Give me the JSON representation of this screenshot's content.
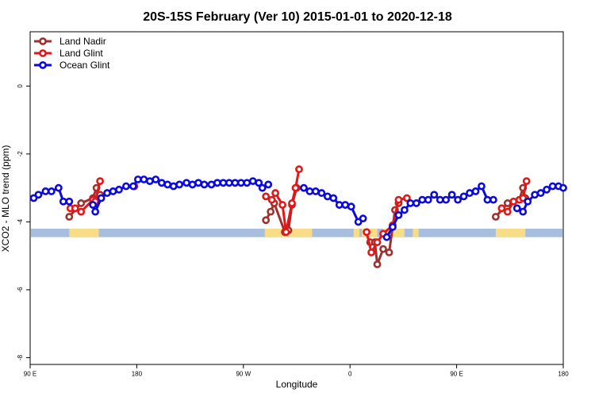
{
  "chart_data": {
    "type": "line",
    "title": "20S-15S February (Ver 10)   2015-01-01 to 2020-12-18",
    "xlabel": "Longitude",
    "ylabel": "XCO2 - MLO trend (ppm)",
    "x_ticks": [
      {
        "value": 90,
        "label": "90 E"
      },
      {
        "value": 180,
        "label": "180"
      },
      {
        "value": 270,
        "label": "90 W"
      },
      {
        "value": 360,
        "label": "0"
      },
      {
        "value": 450,
        "label": "90 E"
      },
      {
        "value": 540,
        "label": "180"
      }
    ],
    "y_ticks": [
      {
        "value": 0,
        "label": "0"
      },
      {
        "value": -2,
        "label": "-2"
      },
      {
        "value": -4,
        "label": "-4"
      },
      {
        "value": -6,
        "label": "-6"
      },
      {
        "value": -8,
        "label": "-8"
      }
    ],
    "xlim": [
      90,
      540
    ],
    "ylim": [
      -8.2,
      1.6
    ],
    "grid": false,
    "legend_position": "top-left",
    "map_strip": {
      "y_range": [
        -4.45,
        -4.2
      ],
      "ocean_color": "#a7bedf",
      "land_color": "#f8dc88",
      "land_ranges": [
        [
          123,
          148
        ],
        [
          288,
          328
        ],
        [
          363,
          368
        ],
        [
          370,
          383
        ],
        [
          388,
          406
        ],
        [
          413,
          418
        ],
        [
          483,
          508
        ]
      ]
    },
    "series": [
      {
        "name": "Land Nadir",
        "color": "#a0302c",
        "points": [
          [
            123,
            -3.85
          ],
          [
            133,
            -3.45
          ],
          [
            143,
            -3.3
          ],
          [
            146,
            -3.0
          ],
          [
            149,
            -3.2
          ],
          [
            178,
            -2.95
          ],
          [
            289,
            -3.95
          ],
          [
            293,
            -3.7
          ],
          [
            296,
            -3.45
          ],
          [
            305,
            -4.3
          ],
          [
            308,
            -4.25
          ],
          [
            311,
            -3.5
          ],
          [
            315,
            -3.0
          ],
          [
            377,
            -4.6
          ],
          [
            381,
            -4.6
          ],
          [
            383,
            -5.25
          ],
          [
            388,
            -4.8
          ],
          [
            393,
            -4.9
          ],
          [
            398,
            -3.65
          ],
          [
            401,
            -3.45
          ],
          [
            483,
            -3.85
          ],
          [
            493,
            -3.45
          ],
          [
            503,
            -3.35
          ],
          [
            506,
            -3.0
          ],
          [
            508,
            -3.3
          ]
        ]
      },
      {
        "name": "Land Glint",
        "color": "#e31717",
        "points": [
          [
            124,
            -3.6
          ],
          [
            128,
            -3.6
          ],
          [
            133,
            -3.7
          ],
          [
            143,
            -3.35
          ],
          [
            145,
            -3.4
          ],
          [
            149,
            -2.8
          ],
          [
            178,
            -2.95
          ],
          [
            289,
            -3.25
          ],
          [
            294,
            -3.35
          ],
          [
            297,
            -3.15
          ],
          [
            303,
            -3.5
          ],
          [
            306,
            -4.3
          ],
          [
            311,
            -3.45
          ],
          [
            314,
            -3.0
          ],
          [
            317,
            -2.45
          ],
          [
            374,
            -4.3
          ],
          [
            378,
            -4.9
          ],
          [
            383,
            -4.6
          ],
          [
            388,
            -4.35
          ],
          [
            396,
            -4.1
          ],
          [
            401,
            -3.35
          ],
          [
            408,
            -3.3
          ],
          [
            488,
            -3.6
          ],
          [
            493,
            -3.7
          ],
          [
            498,
            -3.4
          ],
          [
            503,
            -3.35
          ],
          [
            506,
            -3.3
          ],
          [
            509,
            -2.8
          ]
        ]
      },
      {
        "name": "Ocean Glint",
        "color": "#0a0ae0",
        "points": [
          [
            93,
            -3.3
          ],
          [
            97,
            -3.2
          ],
          [
            103,
            -3.1
          ],
          [
            108,
            -3.1
          ],
          [
            114,
            -3.0
          ],
          [
            118,
            -3.4
          ],
          [
            123,
            -3.4
          ],
          [
            143,
            -3.5
          ],
          [
            145,
            -3.7
          ],
          [
            150,
            -3.3
          ],
          [
            155,
            -3.15
          ],
          [
            160,
            -3.1
          ],
          [
            165,
            -3.05
          ],
          [
            171,
            -2.95
          ],
          [
            177,
            -2.95
          ],
          [
            181,
            -2.75
          ],
          [
            186,
            -2.75
          ],
          [
            191,
            -2.8
          ],
          [
            196,
            -2.75
          ],
          [
            201,
            -2.85
          ],
          [
            206,
            -2.9
          ],
          [
            211,
            -2.95
          ],
          [
            216,
            -2.9
          ],
          [
            222,
            -2.85
          ],
          [
            227,
            -2.9
          ],
          [
            232,
            -2.85
          ],
          [
            237,
            -2.9
          ],
          [
            243,
            -2.9
          ],
          [
            248,
            -2.85
          ],
          [
            253,
            -2.85
          ],
          [
            258,
            -2.85
          ],
          [
            263,
            -2.85
          ],
          [
            268,
            -2.85
          ],
          [
            273,
            -2.85
          ],
          [
            278,
            -2.8
          ],
          [
            283,
            -2.85
          ],
          [
            286,
            -3.0
          ],
          [
            291,
            -2.9
          ],
          [
            321,
            -3.0
          ],
          [
            326,
            -3.1
          ],
          [
            331,
            -3.1
          ],
          [
            336,
            -3.15
          ],
          [
            341,
            -3.25
          ],
          [
            346,
            -3.3
          ],
          [
            351,
            -3.5
          ],
          [
            356,
            -3.5
          ],
          [
            361,
            -3.55
          ],
          [
            367,
            -4.0
          ],
          [
            371,
            -3.9
          ],
          [
            391,
            -4.45
          ],
          [
            396,
            -4.15
          ],
          [
            401,
            -3.8
          ],
          [
            406,
            -3.65
          ],
          [
            411,
            -3.45
          ],
          [
            416,
            -3.45
          ],
          [
            421,
            -3.35
          ],
          [
            426,
            -3.35
          ],
          [
            431,
            -3.2
          ],
          [
            436,
            -3.35
          ],
          [
            441,
            -3.35
          ],
          [
            446,
            -3.2
          ],
          [
            451,
            -3.35
          ],
          [
            456,
            -3.25
          ],
          [
            461,
            -3.15
          ],
          [
            466,
            -3.1
          ],
          [
            471,
            -2.95
          ],
          [
            476,
            -3.35
          ],
          [
            481,
            -3.35
          ],
          [
            501,
            -3.6
          ],
          [
            506,
            -3.7
          ],
          [
            510,
            -3.4
          ],
          [
            516,
            -3.2
          ],
          [
            521,
            -3.15
          ],
          [
            526,
            -3.05
          ],
          [
            531,
            -2.95
          ],
          [
            536,
            -2.95
          ],
          [
            540,
            -3.0
          ]
        ]
      }
    ]
  }
}
